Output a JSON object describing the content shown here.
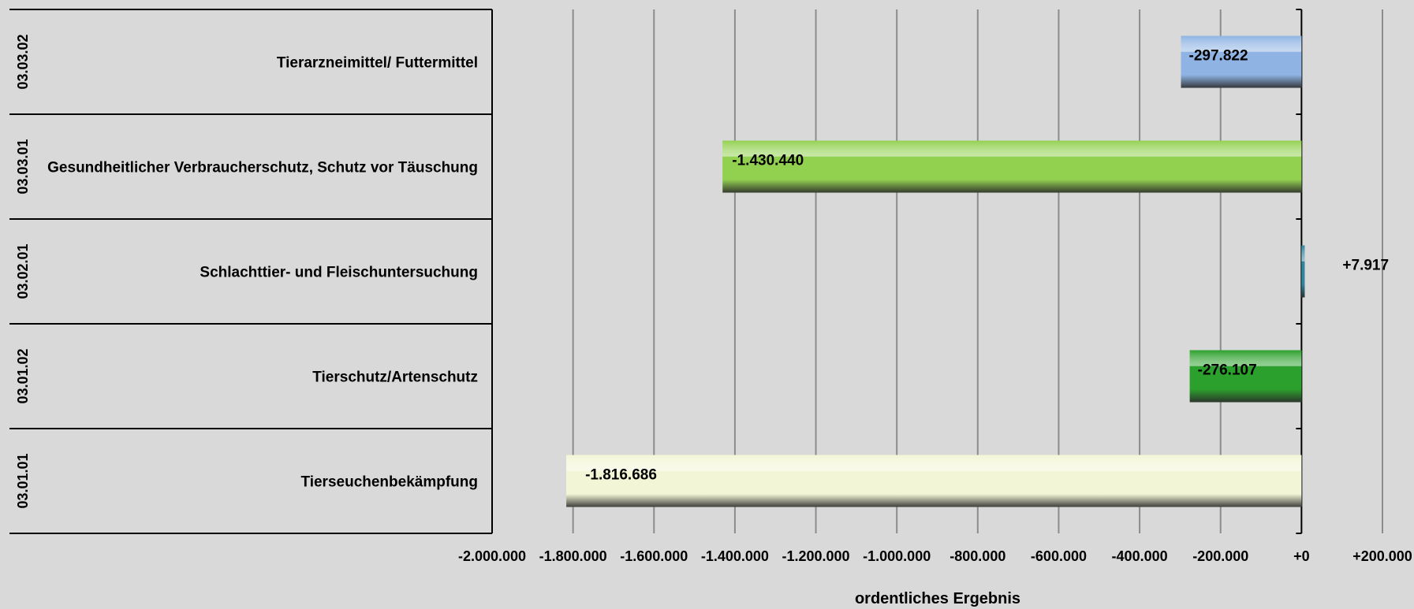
{
  "chart_data": {
    "type": "bar",
    "orientation": "horizontal",
    "xlabel": "ordentliches Ergebnis",
    "xlim": [
      -2000000,
      200000
    ],
    "x_ticks": [
      -2000000,
      -1800000,
      -1600000,
      -1400000,
      -1200000,
      -1000000,
      -800000,
      -600000,
      -400000,
      -200000,
      0,
      200000
    ],
    "x_tick_labels": [
      "-2.000.000",
      "-1.800.000",
      "-1.600.000",
      "-1.400.000",
      "-1.200.000",
      "-1.000.000",
      "-800.000",
      "-600.000",
      "-400.000",
      "-200.000",
      "+0",
      "+200.000"
    ],
    "grid": "vertical",
    "legend": "none",
    "categories": [
      {
        "code": "03.03.02",
        "name": "Tierarzneimittel/ Futtermittel",
        "value": -297822,
        "label": "-297.822",
        "color": "#8fb4e3"
      },
      {
        "code": "03.03.01",
        "name": "Gesundheitlicher Verbraucherschutz, Schutz vor Täuschung",
        "value": -1430440,
        "label": "-1.430.440",
        "color": "#92d050"
      },
      {
        "code": "03.02.01",
        "name": "Schlachttier- und Fleischuntersuchung",
        "value": 7917,
        "label": "+7.917",
        "color": "#31859c"
      },
      {
        "code": "03.01.02",
        "name": "Tierschutz/Artenschutz",
        "value": -276107,
        "label": "-276.107",
        "color": "#2ca02c"
      },
      {
        "code": "03.01.01",
        "name": "Tierseuchenbekämpfung",
        "value": -1816686,
        "label": "-1.816.686",
        "color": "#f3f6d6"
      }
    ]
  }
}
